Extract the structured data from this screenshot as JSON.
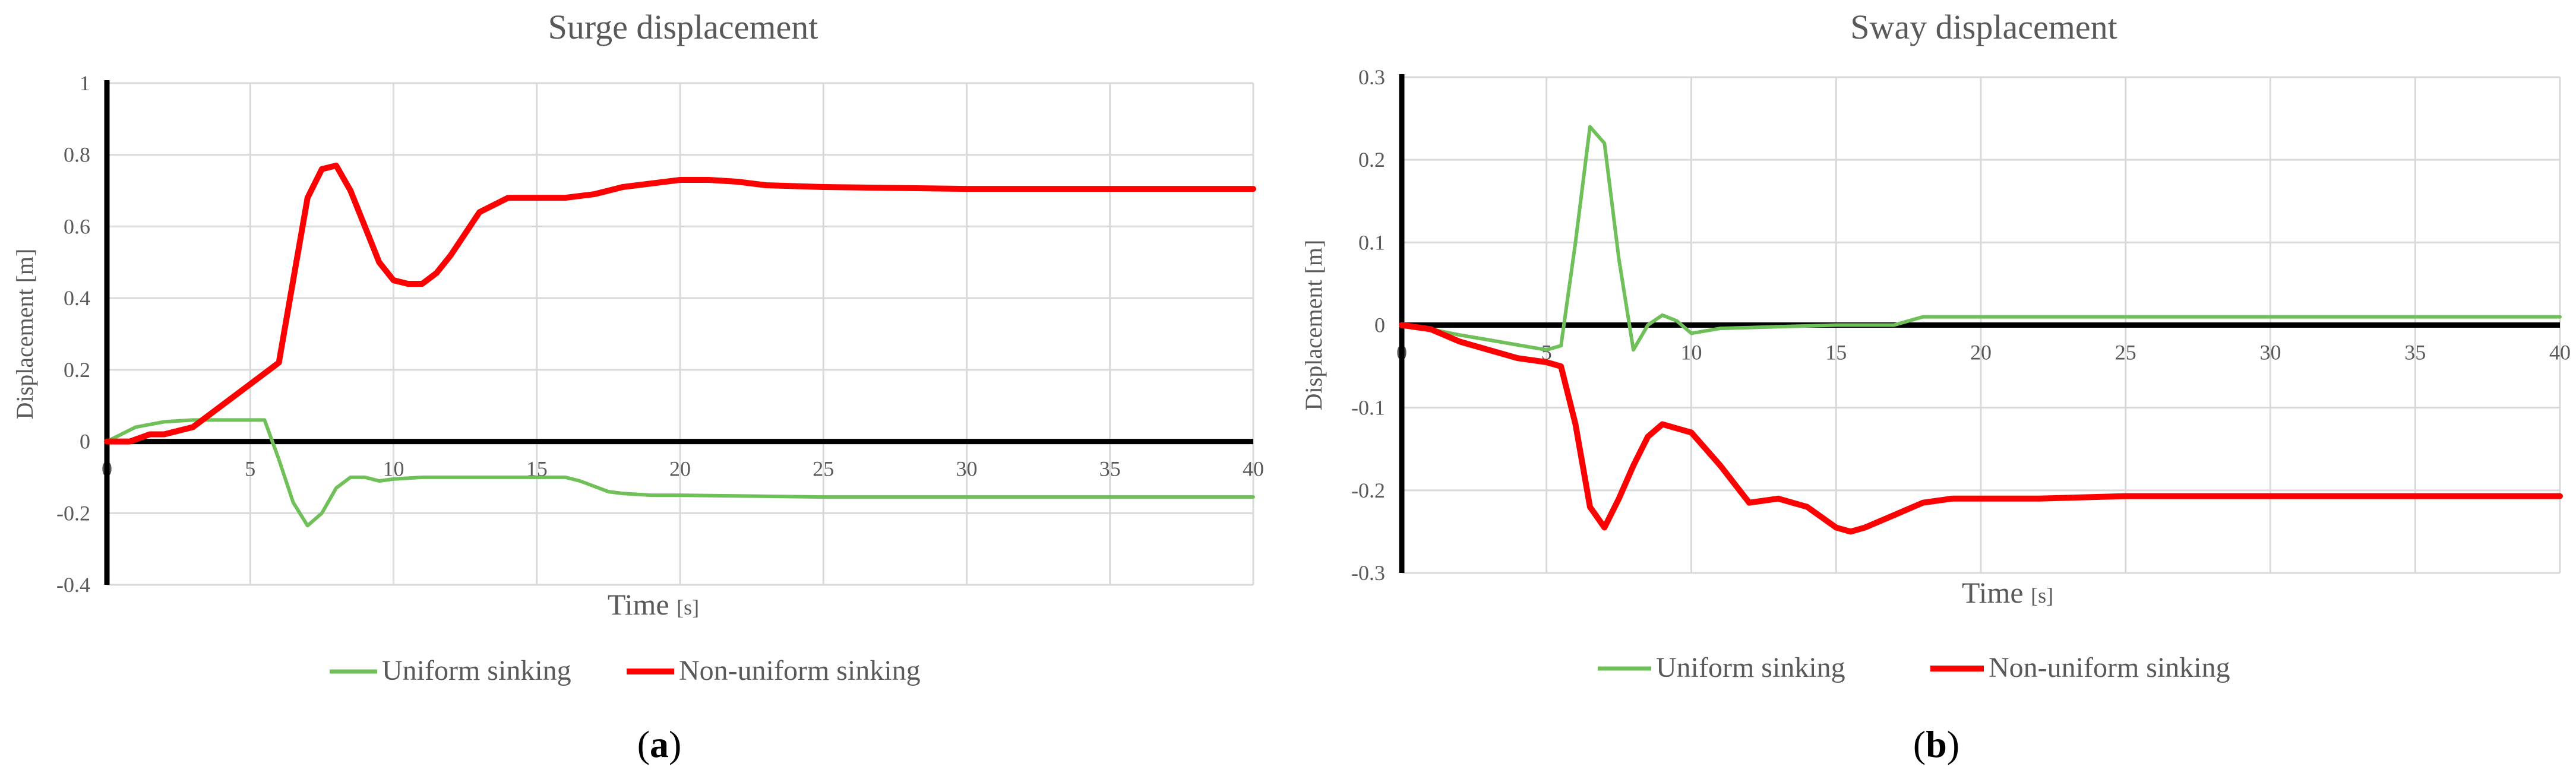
{
  "chart_data": [
    {
      "type": "line",
      "title": "Surge displacement",
      "xlabel": "Time",
      "xlabel_unit": "[s]",
      "ylabel": "Displacement [m]",
      "xlim": [
        0,
        40
      ],
      "ylim": [
        -0.4,
        1
      ],
      "xticks": [
        "0",
        "5",
        "10",
        "15",
        "20",
        "25",
        "30",
        "35",
        "40"
      ],
      "yticks": [
        "-0.4",
        "-0.2",
        "0",
        "0.2",
        "0.4",
        "0.6",
        "0.8",
        "1"
      ],
      "grid": true,
      "legend": "bottom",
      "panel_label": "(a)",
      "panel_letter": "a",
      "series": [
        {
          "name": "Uniform sinking",
          "color": "#70c05a",
          "x": [
            0,
            1,
            2,
            3,
            4,
            5,
            5.5,
            6,
            6.5,
            7,
            7.5,
            8,
            8.5,
            9,
            9.5,
            10,
            11,
            12,
            13,
            14,
            15,
            16,
            16.5,
            17,
            17.5,
            18,
            19,
            20,
            25,
            30,
            35,
            40
          ],
          "y": [
            0,
            0.04,
            0.055,
            0.06,
            0.06,
            0.06,
            0.06,
            -0.05,
            -0.17,
            -0.235,
            -0.2,
            -0.13,
            -0.1,
            -0.1,
            -0.11,
            -0.105,
            -0.1,
            -0.1,
            -0.1,
            -0.1,
            -0.1,
            -0.1,
            -0.11,
            -0.125,
            -0.14,
            -0.145,
            -0.15,
            -0.15,
            -0.155,
            -0.155,
            -0.155,
            -0.155
          ]
        },
        {
          "name": "Non-uniform sinking",
          "color": "#ff0000",
          "x": [
            0,
            0.8,
            1.5,
            2,
            3,
            4,
            5,
            6,
            6.5,
            7,
            7.5,
            8,
            8.5,
            9,
            9.5,
            10,
            10.5,
            11,
            11.5,
            12,
            13,
            14,
            15,
            16,
            17,
            18,
            19,
            20,
            21,
            22,
            23,
            25,
            30,
            35,
            40
          ],
          "y": [
            0,
            0,
            0.02,
            0.02,
            0.04,
            0.1,
            0.16,
            0.22,
            0.45,
            0.68,
            0.76,
            0.77,
            0.7,
            0.6,
            0.5,
            0.45,
            0.44,
            0.44,
            0.47,
            0.52,
            0.64,
            0.68,
            0.68,
            0.68,
            0.69,
            0.71,
            0.72,
            0.73,
            0.73,
            0.725,
            0.715,
            0.71,
            0.705,
            0.705,
            0.705
          ]
        }
      ]
    },
    {
      "type": "line",
      "title": "Sway displacement",
      "xlabel": "Time",
      "xlabel_unit": "[s]",
      "ylabel": "Displacement [m]",
      "xlim": [
        0,
        40
      ],
      "ylim": [
        -0.3,
        0.3
      ],
      "xticks": [
        "0",
        "5",
        "10",
        "15",
        "20",
        "25",
        "30",
        "35",
        "40"
      ],
      "yticks": [
        "-0.3",
        "-0.2",
        "-0.1",
        "0",
        "0.1",
        "0.2",
        "0.3"
      ],
      "grid": true,
      "legend": "bottom",
      "panel_label": "(b)",
      "panel_letter": "b",
      "series": [
        {
          "name": "Uniform sinking",
          "color": "#70c05a",
          "x": [
            0,
            1,
            2,
            3,
            4,
            5,
            5.5,
            6,
            6.5,
            7,
            7.5,
            8,
            8.5,
            9,
            9.5,
            10,
            11,
            12,
            13,
            14,
            15,
            16,
            17,
            18,
            19,
            20,
            25,
            30,
            35,
            40
          ],
          "y": [
            0,
            -0.005,
            -0.012,
            -0.018,
            -0.024,
            -0.03,
            -0.025,
            0.1,
            0.24,
            0.22,
            0.08,
            -0.03,
            0,
            0.012,
            0.005,
            -0.01,
            -0.004,
            -0.003,
            -0.002,
            -0.001,
            0,
            0,
            0,
            0.01,
            0.01,
            0.01,
            0.01,
            0.01,
            0.01,
            0.01
          ]
        },
        {
          "name": "Non-uniform sinking",
          "color": "#ff0000",
          "x": [
            0,
            1,
            2,
            3,
            4,
            5,
            5.5,
            6,
            6.5,
            7,
            7.5,
            8,
            8.5,
            9,
            9.5,
            10,
            11,
            12,
            13,
            14,
            15,
            15.5,
            16,
            17,
            18,
            19,
            20,
            22,
            25,
            30,
            35,
            40
          ],
          "y": [
            0,
            -0.005,
            -0.02,
            -0.03,
            -0.04,
            -0.045,
            -0.05,
            -0.12,
            -0.22,
            -0.245,
            -0.21,
            -0.17,
            -0.135,
            -0.12,
            -0.125,
            -0.13,
            -0.17,
            -0.215,
            -0.21,
            -0.22,
            -0.245,
            -0.25,
            -0.245,
            -0.23,
            -0.215,
            -0.21,
            -0.21,
            -0.21,
            -0.207,
            -0.207,
            -0.207,
            -0.207
          ]
        }
      ]
    }
  ]
}
